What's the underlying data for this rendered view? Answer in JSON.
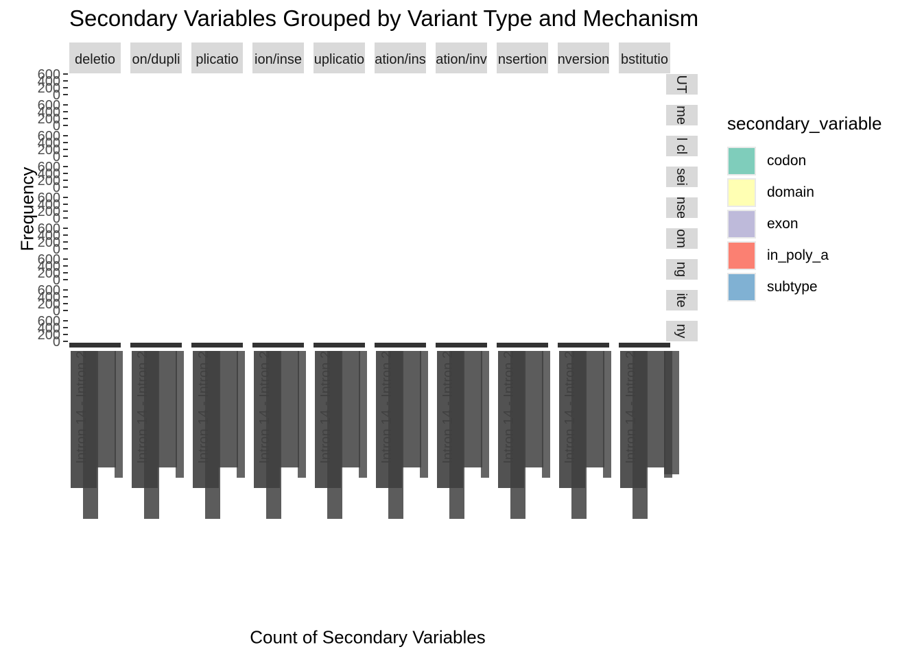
{
  "chart_data": {
    "type": "bar",
    "title": "Secondary Variables Grouped by Variant Type and Mechanism",
    "xlabel": "Count of Secondary Variables",
    "ylabel": "Frequency",
    "ylim": [
      0,
      600
    ],
    "yticks": [
      "0",
      "200",
      "400",
      "600"
    ],
    "column_facets": [
      "deletion",
      "deletion/duplication",
      "duplication",
      "duplication/insertion",
      "duplication",
      "duplication/insertion",
      "duplication/inversion",
      "insertion",
      "inversion",
      "substitution"
    ],
    "column_facet_labels_visible": [
      "deletio",
      "on/dupli",
      "plicatio",
      "ion/inse",
      "uplicatio",
      "ation/ins",
      "ation/inv",
      "nsertion",
      "nversion",
      "bstitutio"
    ],
    "row_facet_labels_visible": [
      "UT",
      "me",
      "l cl",
      "sei",
      "nse",
      "om",
      "ng",
      "ite",
      "ny"
    ],
    "x_tick_label_long": "Intron 14 - Intron 2",
    "legend_title": "secondary_variable",
    "legend_position": "right",
    "grid": false,
    "series": [
      {
        "name": "codon",
        "color": "#7FCDBB"
      },
      {
        "name": "domain",
        "color": "#FFFFB3"
      },
      {
        "name": "exon",
        "color": "#BEBADA"
      },
      {
        "name": "in_poly_a",
        "color": "#FB8072"
      },
      {
        "name": "subtype",
        "color": "#80B1D3"
      }
    ]
  }
}
